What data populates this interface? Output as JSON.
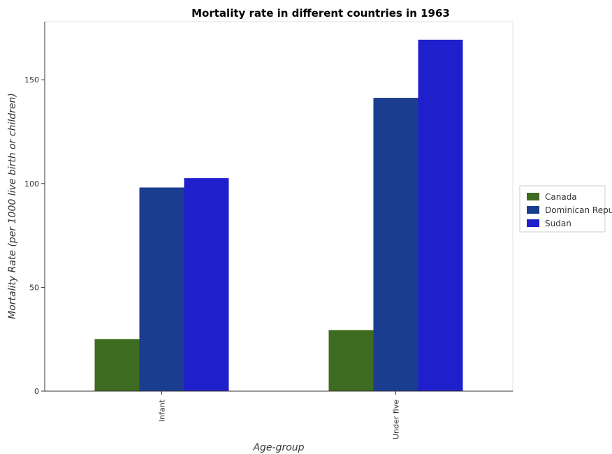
{
  "chart_data": {
    "type": "bar",
    "title": "Mortality rate in different countries in 1963",
    "xlabel": "Age-group",
    "ylabel": "Mortality Rate (per 1000 live birth or children)",
    "categories": [
      "Infant",
      "Under five"
    ],
    "series": [
      {
        "name": "Canada",
        "color": "#3d6b20",
        "values": [
          25.1,
          29.4
        ]
      },
      {
        "name": "Dominican Republic",
        "color": "#1a3d8f",
        "values": [
          98.1,
          141.3
        ]
      },
      {
        "name": "Sudan",
        "color": "#1f1fcc",
        "values": [
          102.6,
          169.3
        ]
      }
    ],
    "yticks": [
      0,
      50,
      100,
      150
    ],
    "ylim": [
      0,
      178
    ],
    "legend_position": "right",
    "grid": false
  }
}
